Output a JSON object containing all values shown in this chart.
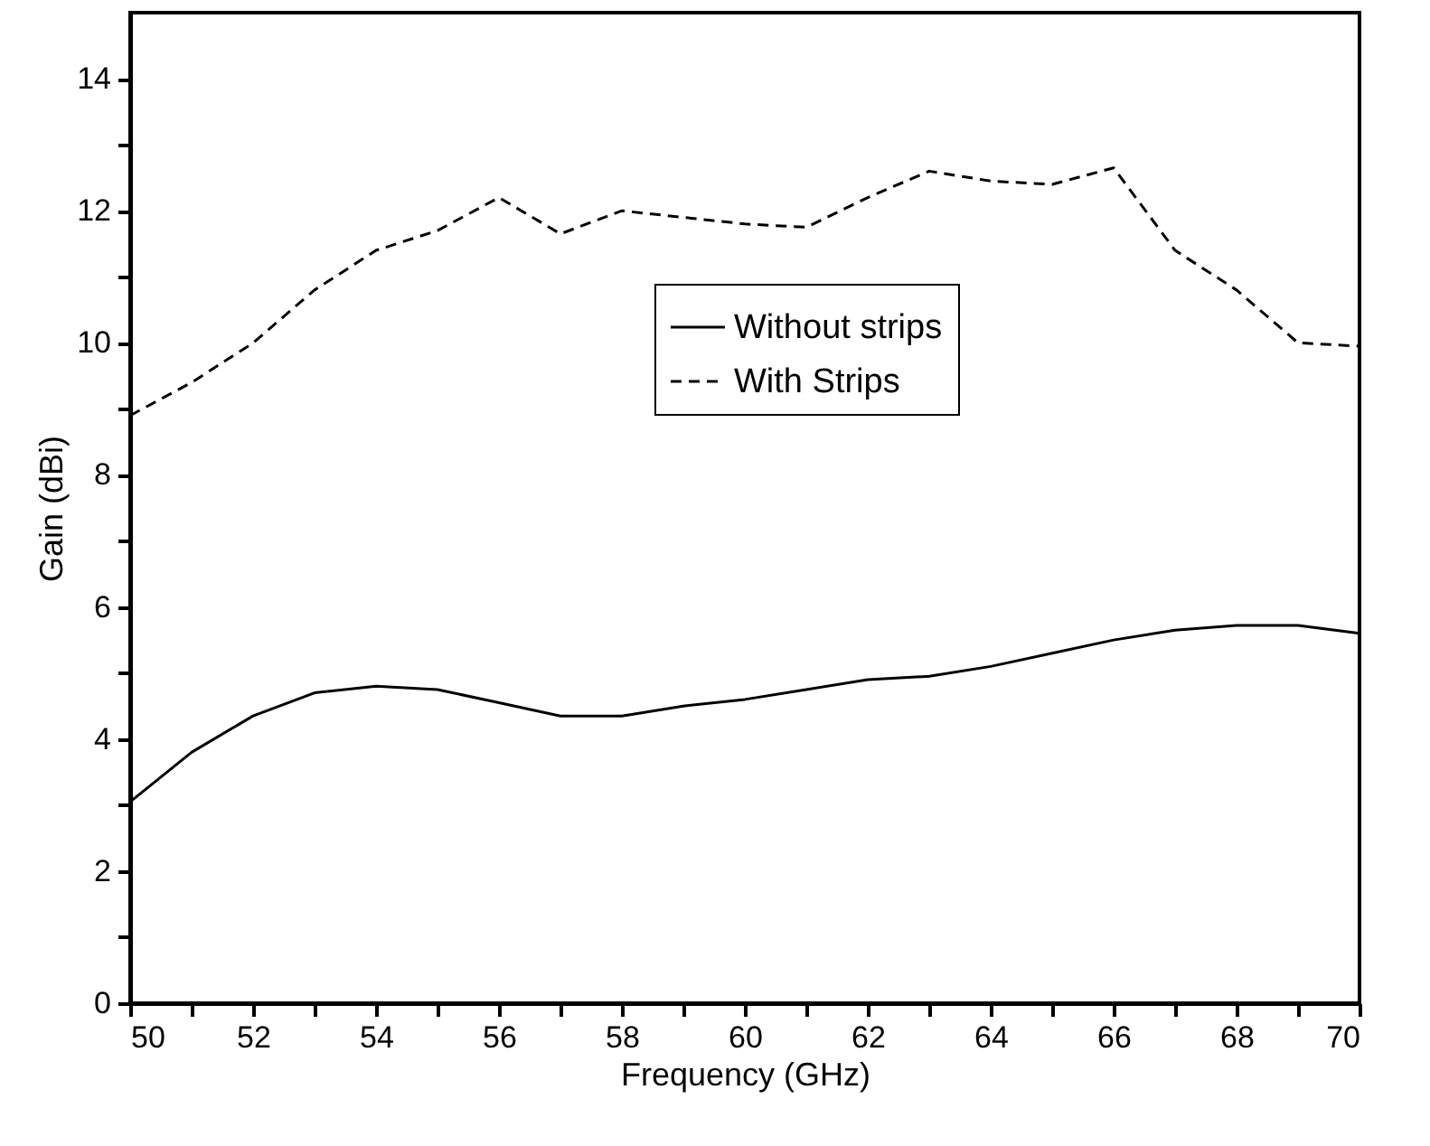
{
  "chart_data": {
    "type": "line",
    "xlabel": "Frequency (GHz)",
    "ylabel": "Gain (dBi)",
    "x": [
      50,
      51,
      52,
      53,
      54,
      55,
      56,
      57,
      58,
      59,
      60,
      61,
      62,
      63,
      64,
      65,
      66,
      67,
      68,
      69,
      70
    ],
    "series": [
      {
        "name": "Without strips",
        "color": "#000000",
        "line_style": "solid",
        "values": [
          3.05,
          3.8,
          4.35,
          4.7,
          4.8,
          4.75,
          4.55,
          4.35,
          4.35,
          4.5,
          4.6,
          4.75,
          4.9,
          4.95,
          5.1,
          5.3,
          5.5,
          5.65,
          5.72,
          5.72,
          5.6
        ]
      },
      {
        "name": "With Strips",
        "color": "#000000",
        "line_style": "dashed",
        "values": [
          8.9,
          9.4,
          10.0,
          10.8,
          11.4,
          11.7,
          12.2,
          11.65,
          12.0,
          11.9,
          11.8,
          11.75,
          12.2,
          12.6,
          12.45,
          12.4,
          12.65,
          11.4,
          10.8,
          10.0,
          9.95
        ]
      }
    ],
    "xlim": [
      50,
      70
    ],
    "xticks": [
      50,
      {
        "value": 51,
        "label": null
      },
      52,
      {
        "value": 53,
        "label": null
      },
      54,
      {
        "value": 55,
        "label": null
      },
      56,
      {
        "value": 57,
        "label": null
      },
      58,
      {
        "value": 59,
        "label": null
      },
      60,
      {
        "value": 61,
        "label": null
      },
      62,
      {
        "value": 63,
        "label": null
      },
      64,
      {
        "value": 65,
        "label": null
      },
      66,
      {
        "value": 67,
        "label": null
      },
      68,
      {
        "value": 69,
        "label": null
      },
      70
    ],
    "ylim": [
      0,
      15
    ],
    "yticks": [
      0,
      {
        "value": 1,
        "label": null
      },
      2,
      {
        "value": 3,
        "label": null
      },
      4,
      {
        "value": 5,
        "label": null
      },
      6,
      {
        "value": 7,
        "label": null
      },
      8,
      {
        "value": 9,
        "label": null
      },
      10,
      {
        "value": 11,
        "label": null
      },
      12,
      {
        "value": 13,
        "label": null
      },
      14
    ],
    "legend": "top right",
    "grid": false,
    "marker": "none"
  }
}
